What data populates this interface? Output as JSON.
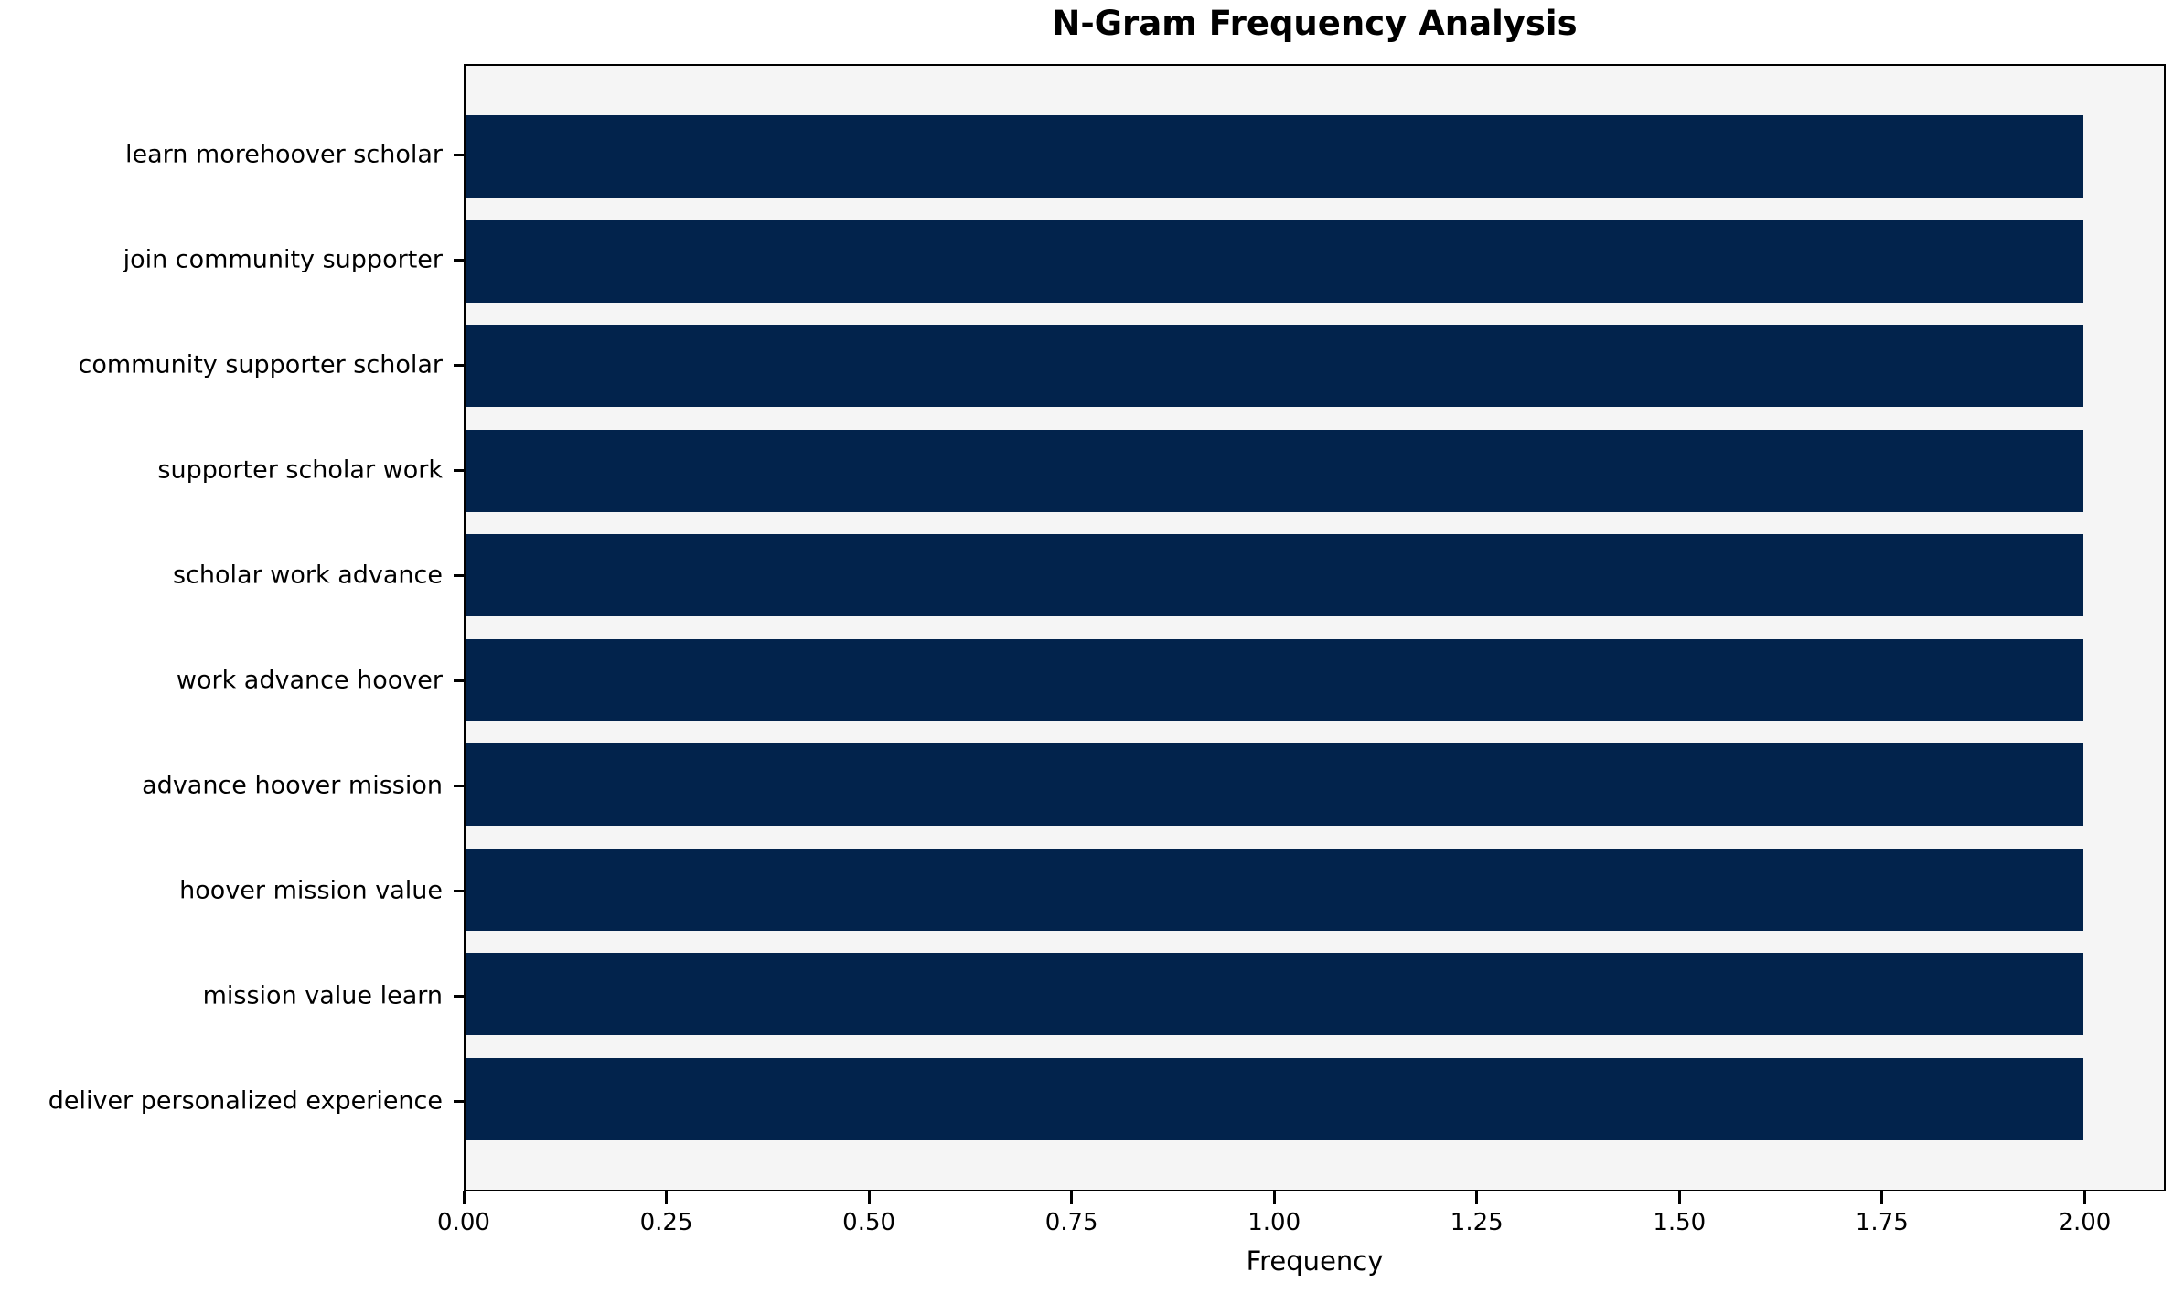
{
  "chart_data": {
    "type": "bar",
    "orientation": "horizontal",
    "title": "N-Gram Frequency Analysis",
    "xlabel": "Frequency",
    "ylabel": "",
    "categories": [
      "learn morehoover scholar",
      "join community supporter",
      "community supporter scholar",
      "supporter scholar work",
      "scholar work advance",
      "work advance hoover",
      "advance hoover mission",
      "hoover mission value",
      "mission value learn",
      "deliver personalized experience"
    ],
    "values": [
      2,
      2,
      2,
      2,
      2,
      2,
      2,
      2,
      2,
      2
    ],
    "xlim": [
      0,
      2.1
    ],
    "xticks": [
      {
        "value": 0.0,
        "label": "0.00"
      },
      {
        "value": 0.25,
        "label": "0.25"
      },
      {
        "value": 0.5,
        "label": "0.50"
      },
      {
        "value": 0.75,
        "label": "0.75"
      },
      {
        "value": 1.0,
        "label": "1.00"
      },
      {
        "value": 1.25,
        "label": "1.25"
      },
      {
        "value": 1.5,
        "label": "1.50"
      },
      {
        "value": 1.75,
        "label": "1.75"
      },
      {
        "value": 2.0,
        "label": "2.00"
      }
    ],
    "grid": false,
    "legend": null,
    "bar_color": "#02234c",
    "plot_background": "#f5f5f5",
    "figure_background": "#ffffff",
    "axis_color": "#000000"
  }
}
